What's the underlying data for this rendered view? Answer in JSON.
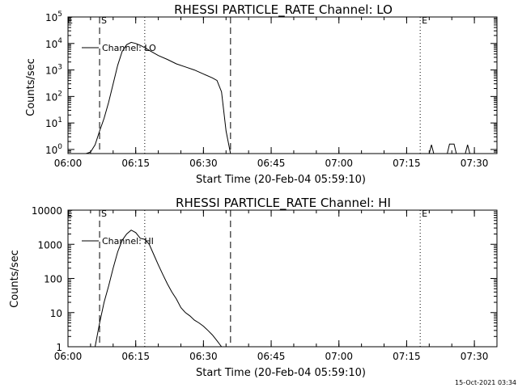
{
  "footer": {
    "timestamp": "15-Oct-2021 03:34"
  },
  "chart_data": [
    {
      "type": "line",
      "title": "RHESSI PARTICLE_RATE Channel: LO",
      "xlabel": "Start Time (20-Feb-04 05:59:10)",
      "ylabel": "Counts/sec",
      "y_scale": "log",
      "ylim": [
        0.7,
        100000
      ],
      "xlim": [
        "06:00",
        "07:35"
      ],
      "x_ticks": [
        "06:00",
        "06:15",
        "06:30",
        "06:45",
        "07:00",
        "07:15",
        "07:30"
      ],
      "y_ticks": [
        {
          "value": 1,
          "label": "10",
          "exp": "0"
        },
        {
          "value": 10,
          "label": "10",
          "exp": "1"
        },
        {
          "value": 100,
          "label": "10",
          "exp": "2"
        },
        {
          "value": 1000,
          "label": "10",
          "exp": "3"
        },
        {
          "value": 10000,
          "label": "10",
          "exp": "4"
        },
        {
          "value": 100000,
          "label": "10",
          "exp": "5"
        }
      ],
      "legend": {
        "entry": "Channel: LO",
        "placement": "top-left"
      },
      "markers": [
        {
          "time": "06:07",
          "style": "dashed",
          "label": "S"
        },
        {
          "time": "06:36",
          "style": "dashed",
          "label": ""
        },
        {
          "time": "06:17",
          "style": "dotted",
          "label": ""
        },
        {
          "time": "07:18",
          "style": "dotted",
          "label": "E"
        },
        {
          "time": "07:35",
          "style": "dotted",
          "label": ""
        }
      ],
      "series": [
        {
          "x": [
            "06:04",
            "06:05",
            "06:06",
            "06:07",
            "06:08",
            "06:09",
            "06:10",
            "06:11",
            "06:12",
            "06:13",
            "06:14",
            "06:15",
            "06:16",
            "06:17",
            "06:18",
            "06:20",
            "06:22",
            "06:24",
            "06:26",
            "06:28",
            "06:30",
            "06:32",
            "06:33",
            "06:34",
            "06:35",
            "06:36"
          ],
          "y": [
            0.5,
            0.8,
            1.5,
            5,
            15,
            60,
            300,
            1500,
            5000,
            9000,
            11000,
            10000,
            8500,
            7000,
            5500,
            3500,
            2500,
            1700,
            1300,
            1000,
            700,
            500,
            400,
            150,
            5,
            0.5
          ]
        },
        {
          "x": [
            "07:20",
            "07:20.5",
            "07:21",
            "07:24",
            "07:24.5",
            "07:25.5",
            "07:26",
            "07:28",
            "07:28.5",
            "07:29"
          ],
          "y": [
            0.5,
            1.5,
            0.5,
            0.5,
            1.6,
            1.6,
            0.5,
            0.5,
            1.5,
            0.5
          ]
        }
      ]
    },
    {
      "type": "line",
      "title": "RHESSI PARTICLE_RATE Channel: HI",
      "xlabel": "Start Time (20-Feb-04 05:59:10)",
      "ylabel": "Counts/sec",
      "y_scale": "log",
      "ylim": [
        1,
        10000
      ],
      "xlim": [
        "06:00",
        "07:35"
      ],
      "x_ticks": [
        "06:00",
        "06:15",
        "06:30",
        "06:45",
        "07:00",
        "07:15",
        "07:30"
      ],
      "y_ticks": [
        {
          "value": 1,
          "label": "1"
        },
        {
          "value": 10,
          "label": "10"
        },
        {
          "value": 100,
          "label": "100"
        },
        {
          "value": 1000,
          "label": "1000"
        },
        {
          "value": 10000,
          "label": "10000"
        }
      ],
      "legend": {
        "entry": "Channel: HI",
        "placement": "top-left"
      },
      "markers": [
        {
          "time": "06:07",
          "style": "dashed",
          "label": "S"
        },
        {
          "time": "06:36",
          "style": "dashed",
          "label": ""
        },
        {
          "time": "06:17",
          "style": "dotted",
          "label": ""
        },
        {
          "time": "07:18",
          "style": "dotted",
          "label": "E"
        },
        {
          "time": "07:35",
          "style": "dotted",
          "label": ""
        }
      ],
      "series": [
        {
          "x": [
            "06:06",
            "06:07",
            "06:08",
            "06:09",
            "06:10",
            "06:11",
            "06:12",
            "06:13",
            "06:14",
            "06:15",
            "06:16",
            "06:17",
            "06:18",
            "06:19",
            "06:20",
            "06:21",
            "06:22",
            "06:23",
            "06:24",
            "06:25",
            "06:26",
            "06:27",
            "06:28",
            "06:29",
            "06:30",
            "06:31",
            "06:32",
            "06:33",
            "06:34"
          ],
          "y": [
            0.5,
            5,
            20,
            60,
            200,
            600,
            1300,
            2000,
            2600,
            2200,
            1500,
            1400,
            1000,
            500,
            250,
            130,
            70,
            40,
            25,
            14,
            10,
            8,
            6,
            5,
            4,
            3,
            2.2,
            1.5,
            0.5
          ]
        }
      ]
    }
  ]
}
